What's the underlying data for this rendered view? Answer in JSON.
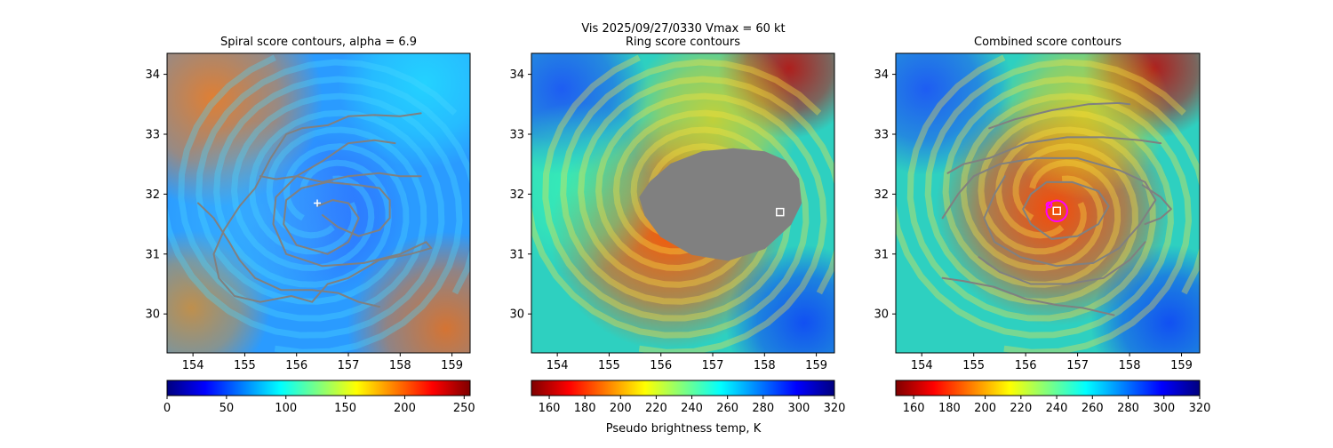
{
  "figure": {
    "suptitle_line1": "Vis  2025/09/27/0330    Vmax = 60 kt",
    "colorbar_label": "Pseudo brightness temp, K"
  },
  "chart_data": [
    {
      "type": "heatmap",
      "title": "Spiral score contours, alpha =  6.9",
      "xlim": [
        153.5,
        159.35
      ],
      "ylim": [
        29.35,
        34.35
      ],
      "xticks": [
        154,
        155,
        156,
        157,
        158,
        159
      ],
      "yticks": [
        30,
        31,
        32,
        33,
        34
      ],
      "colormap": "jet",
      "colorbar": {
        "min": 0,
        "max": 255,
        "ticks": [
          0,
          50,
          100,
          150,
          200,
          250
        ]
      },
      "contour_color": "#808080",
      "contours": [
        [
          [
            155.3,
            32.3
          ],
          [
            155.6,
            32.25
          ],
          [
            156.0,
            32.3
          ],
          [
            156.5,
            32.2
          ],
          [
            157.0,
            32.3
          ],
          [
            157.6,
            32.35
          ],
          [
            158.0,
            32.3
          ],
          [
            158.4,
            32.3
          ]
        ],
        [
          [
            157.9,
            32.85
          ],
          [
            157.5,
            32.9
          ],
          [
            157.0,
            32.85
          ],
          [
            156.5,
            32.55
          ],
          [
            156.0,
            32.3
          ],
          [
            155.6,
            31.95
          ],
          [
            155.55,
            31.5
          ],
          [
            155.8,
            31.0
          ],
          [
            156.5,
            30.8
          ],
          [
            157.3,
            30.85
          ],
          [
            158.0,
            31.0
          ],
          [
            158.5,
            31.2
          ],
          [
            158.6,
            31.1
          ],
          [
            158.2,
            31.0
          ],
          [
            157.6,
            30.9
          ],
          [
            157.0,
            30.6
          ],
          [
            156.6,
            30.5
          ],
          [
            156.3,
            30.2
          ],
          [
            155.9,
            30.3
          ],
          [
            155.3,
            30.2
          ],
          [
            154.8,
            30.3
          ],
          [
            154.5,
            30.6
          ],
          [
            154.4,
            31.0
          ],
          [
            154.6,
            31.4
          ],
          [
            154.9,
            31.8
          ],
          [
            155.2,
            32.1
          ],
          [
            155.5,
            32.6
          ],
          [
            155.8,
            33.0
          ],
          [
            156.1,
            33.1
          ],
          [
            156.6,
            33.15
          ],
          [
            157.0,
            33.3
          ],
          [
            157.5,
            33.32
          ],
          [
            158.0,
            33.3
          ],
          [
            158.4,
            33.35
          ]
        ],
        [
          [
            156.4,
            31.8
          ],
          [
            156.7,
            31.9
          ],
          [
            157.0,
            31.85
          ],
          [
            157.2,
            31.6
          ],
          [
            157.0,
            31.2
          ],
          [
            156.6,
            31.0
          ],
          [
            156.0,
            31.15
          ],
          [
            155.75,
            31.5
          ],
          [
            155.8,
            31.9
          ],
          [
            156.1,
            32.1
          ],
          [
            156.6,
            32.2
          ],
          [
            157.2,
            32.15
          ],
          [
            157.6,
            32.1
          ],
          [
            157.8,
            31.9
          ],
          [
            157.8,
            31.6
          ],
          [
            157.6,
            31.4
          ],
          [
            157.2,
            31.3
          ],
          [
            156.8,
            31.45
          ],
          [
            156.5,
            31.65
          ]
        ],
        [
          [
            154.1,
            31.85
          ],
          [
            154.4,
            31.6
          ],
          [
            154.7,
            31.2
          ],
          [
            154.9,
            30.9
          ],
          [
            155.2,
            30.6
          ],
          [
            155.7,
            30.4
          ],
          [
            156.3,
            30.4
          ],
          [
            156.8,
            30.35
          ],
          [
            157.2,
            30.2
          ],
          [
            157.6,
            30.12
          ]
        ]
      ],
      "marker": {
        "type": "plus",
        "x": 156.4,
        "y": 31.85,
        "color": "#ffffff"
      }
    },
    {
      "type": "heatmap",
      "title": "Ring score contours",
      "xlim": [
        153.5,
        159.35
      ],
      "ylim": [
        29.35,
        34.35
      ],
      "xticks": [
        154,
        155,
        156,
        157,
        158,
        159
      ],
      "yticks": [
        30,
        31,
        32,
        33,
        34
      ],
      "colormap": "jet_r",
      "colorbar": {
        "min": 150,
        "max": 320,
        "ticks": [
          160,
          180,
          200,
          220,
          240,
          260,
          280,
          300,
          320
        ]
      },
      "contour_color": "#808080",
      "filled_region": [
        [
          155.8,
          32.2
        ],
        [
          156.2,
          32.5
        ],
        [
          156.8,
          32.7
        ],
        [
          157.4,
          32.75
        ],
        [
          158.0,
          32.7
        ],
        [
          158.4,
          32.55
        ],
        [
          158.65,
          32.25
        ],
        [
          158.7,
          31.85
        ],
        [
          158.5,
          31.5
        ],
        [
          158.0,
          31.1
        ],
        [
          157.3,
          30.9
        ],
        [
          156.6,
          31.0
        ],
        [
          156.0,
          31.3
        ],
        [
          155.7,
          31.65
        ],
        [
          155.6,
          31.95
        ]
      ],
      "marker": {
        "type": "square",
        "x": 158.3,
        "y": 31.7,
        "color": "#ffffff"
      }
    },
    {
      "type": "heatmap",
      "title": "Combined score contours",
      "xlim": [
        153.5,
        159.35
      ],
      "ylim": [
        29.35,
        34.35
      ],
      "xticks": [
        154,
        155,
        156,
        157,
        158,
        159
      ],
      "yticks": [
        30,
        31,
        32,
        33,
        34
      ],
      "colormap": "jet_r",
      "colorbar": {
        "min": 150,
        "max": 320,
        "ticks": [
          160,
          180,
          200,
          220,
          240,
          260,
          280,
          300,
          320
        ]
      },
      "contour_color": "#808080",
      "contours": [
        [
          [
            155.3,
            33.1
          ],
          [
            155.8,
            33.25
          ],
          [
            156.5,
            33.4
          ],
          [
            157.2,
            33.5
          ],
          [
            157.8,
            33.52
          ],
          [
            158.0,
            33.5
          ]
        ],
        [
          [
            154.5,
            32.35
          ],
          [
            154.8,
            32.5
          ],
          [
            155.3,
            32.6
          ],
          [
            156.0,
            32.85
          ],
          [
            156.8,
            32.95
          ],
          [
            157.5,
            32.95
          ],
          [
            158.2,
            32.9
          ],
          [
            158.6,
            32.85
          ]
        ],
        [
          [
            154.4,
            31.6
          ],
          [
            154.7,
            32.0
          ],
          [
            155.0,
            32.3
          ],
          [
            155.5,
            32.5
          ],
          [
            156.2,
            32.6
          ],
          [
            157.0,
            32.6
          ],
          [
            157.8,
            32.4
          ],
          [
            158.3,
            32.2
          ],
          [
            158.5,
            31.9
          ],
          [
            158.2,
            31.5
          ],
          [
            157.8,
            31.1
          ],
          [
            157.3,
            30.85
          ],
          [
            156.6,
            30.8
          ],
          [
            155.9,
            30.95
          ],
          [
            155.4,
            31.2
          ],
          [
            155.2,
            31.6
          ],
          [
            155.4,
            32.0
          ],
          [
            155.6,
            32.3
          ]
        ],
        [
          [
            156.1,
            31.5
          ],
          [
            156.5,
            31.25
          ],
          [
            157.0,
            31.3
          ],
          [
            157.4,
            31.5
          ],
          [
            157.6,
            31.8
          ],
          [
            157.4,
            32.05
          ],
          [
            156.9,
            32.2
          ],
          [
            156.4,
            32.2
          ],
          [
            156.1,
            32.0
          ],
          [
            155.95,
            31.75
          ],
          [
            156.1,
            31.5
          ]
        ],
        [
          [
            158.25,
            32.15
          ],
          [
            158.6,
            31.95
          ],
          [
            158.8,
            31.75
          ],
          [
            158.6,
            31.6
          ],
          [
            158.3,
            31.5
          ]
        ],
        [
          [
            154.4,
            30.6
          ],
          [
            154.8,
            30.55
          ],
          [
            155.4,
            30.45
          ],
          [
            156.0,
            30.25
          ],
          [
            156.6,
            30.15
          ],
          [
            157.1,
            30.1
          ],
          [
            157.5,
            30.02
          ],
          [
            157.7,
            29.98
          ]
        ],
        [
          [
            155.1,
            30.95
          ],
          [
            155.5,
            30.7
          ],
          [
            156.1,
            30.5
          ],
          [
            156.8,
            30.5
          ],
          [
            157.5,
            30.6
          ],
          [
            158.0,
            30.9
          ],
          [
            158.3,
            31.2
          ]
        ]
      ],
      "circles": [
        {
          "x": 156.6,
          "y": 31.72,
          "r": 0.2,
          "color": "#ff00ff"
        },
        {
          "x": 156.45,
          "y": 31.82,
          "r": 0.05,
          "color": "#ff00ff"
        }
      ],
      "marker": {
        "type": "square",
        "x": 156.6,
        "y": 31.72,
        "color": "#ffffff"
      }
    }
  ]
}
